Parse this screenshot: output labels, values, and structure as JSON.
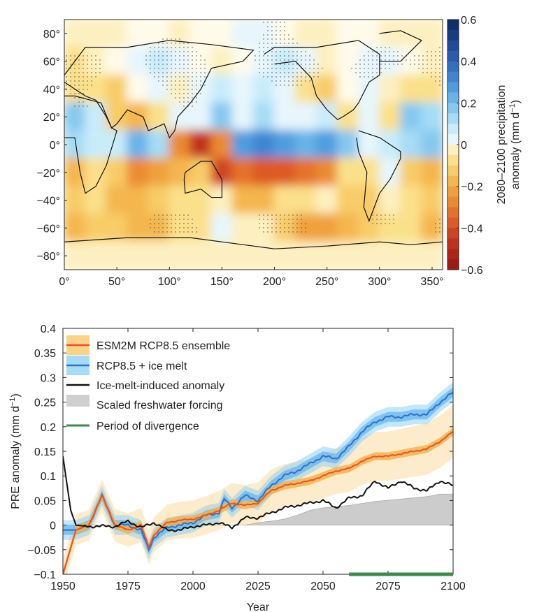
{
  "chart_data": [
    {
      "type": "heatmap",
      "x_ticks": [
        "0°",
        "50°",
        "100°",
        "150°",
        "200°",
        "250°",
        "300°",
        "350°"
      ],
      "x_tick_values": [
        0,
        50,
        100,
        150,
        200,
        250,
        300,
        350
      ],
      "y_ticks": [
        "80°",
        "60°",
        "40°",
        "20°",
        "0°",
        "−20°",
        "−40°",
        "−60°",
        "−80°"
      ],
      "y_tick_values": [
        80,
        60,
        40,
        20,
        0,
        -20,
        -40,
        -60,
        -80
      ],
      "xlim": [
        0,
        360
      ],
      "ylim": [
        -90,
        90
      ],
      "lon_centers": [
        10,
        30,
        50,
        70,
        90,
        110,
        130,
        150,
        170,
        190,
        210,
        230,
        250,
        270,
        290,
        310,
        330,
        350
      ],
      "lat_centers": [
        80,
        60,
        40,
        20,
        0,
        -20,
        -40,
        -60,
        -80
      ],
      "values": [
        [
          -0.05,
          -0.05,
          -0.05,
          0,
          0,
          -0.05,
          0,
          0,
          0.05,
          0.05,
          0,
          -0.05,
          -0.05,
          0,
          0,
          -0.05,
          -0.05,
          -0.05
        ],
        [
          -0.1,
          -0.05,
          0,
          0.05,
          0.1,
          0.05,
          0,
          -0.05,
          0,
          0.05,
          0.1,
          0.05,
          -0.05,
          0,
          0.05,
          0.05,
          0,
          -0.05
        ],
        [
          -0.1,
          -0.1,
          -0.15,
          0,
          0.05,
          -0.05,
          0.05,
          0.1,
          0.05,
          0.1,
          0.05,
          -0.1,
          -0.15,
          0,
          0.05,
          -0.05,
          -0.1,
          -0.1
        ],
        [
          0.2,
          0.1,
          -0.15,
          -0.2,
          -0.1,
          0.05,
          0.05,
          0.2,
          0.05,
          0.15,
          0.05,
          0.05,
          0.1,
          -0.1,
          0.05,
          -0.1,
          0.2,
          0.15
        ],
        [
          0.15,
          0.1,
          0.1,
          0.25,
          0.15,
          -0.3,
          -0.5,
          -0.3,
          0.3,
          0.35,
          0.3,
          0.25,
          0.3,
          0.2,
          0.05,
          0.1,
          0.15,
          0.2
        ],
        [
          -0.2,
          -0.1,
          -0.15,
          -0.3,
          -0.25,
          -0.2,
          -0.15,
          -0.45,
          -0.35,
          -0.4,
          -0.4,
          -0.35,
          -0.3,
          -0.1,
          -0.1,
          0.05,
          -0.15,
          -0.2
        ],
        [
          -0.15,
          -0.1,
          -0.2,
          -0.2,
          -0.15,
          -0.1,
          -0.1,
          -0.05,
          -0.2,
          -0.2,
          -0.1,
          -0.1,
          -0.05,
          -0.15,
          -0.15,
          -0.05,
          -0.1,
          -0.15
        ],
        [
          -0.2,
          -0.15,
          -0.15,
          -0.2,
          -0.2,
          -0.1,
          -0.1,
          0.05,
          -0.05,
          -0.05,
          -0.15,
          -0.25,
          -0.25,
          -0.2,
          -0.15,
          -0.1,
          -0.1,
          -0.2
        ],
        [
          -0.05,
          -0.05,
          -0.05,
          -0.05,
          -0.05,
          -0.05,
          -0.05,
          -0.05,
          -0.05,
          -0.05,
          -0.05,
          -0.05,
          -0.05,
          -0.05,
          -0.05,
          -0.05,
          -0.05,
          -0.05
        ]
      ],
      "colorbar": {
        "label_line1": "2080–2100 precipitation",
        "label_line2": "anomaly (mm d",
        "label_sup": "−1",
        "label_end": ")",
        "ticks": [
          "0.6",
          "0.4",
          "0.2",
          "0",
          "−0.2",
          "−0.4",
          "−0.6"
        ],
        "tick_values": [
          0.6,
          0.4,
          0.2,
          0,
          -0.2,
          -0.4,
          -0.6
        ],
        "range": [
          -0.6,
          0.6
        ],
        "positive_colors": [
          "#fffbea",
          "#e6f6fc",
          "#c8ecfa",
          "#a6dcf5",
          "#86c8ef",
          "#68b3e8",
          "#4f9ddf",
          "#3f85d2",
          "#3470c2",
          "#2a5cae",
          "#214b98",
          "#183c82",
          "#0f2f6c"
        ],
        "negative_colors": [
          "#fffbea",
          "#fdf0c0",
          "#fbe08a",
          "#f8cc68",
          "#f4b64e",
          "#f0a13e",
          "#eb8a32",
          "#e5722a",
          "#dd5a24",
          "#cf4420",
          "#c0321c",
          "#b02418",
          "#a01a14"
        ]
      }
    },
    {
      "type": "line",
      "xlabel": "Year",
      "ylabel": "PRE anomaly (mm d",
      "ylabel_sup": "−1",
      "ylabel_end": ")",
      "xlim": [
        1950,
        2100
      ],
      "ylim": [
        -0.1,
        0.4
      ],
      "x_ticks": [
        "1950",
        "1975",
        "2000",
        "2025",
        "2050",
        "2075",
        "2100"
      ],
      "x_tick_values": [
        1950,
        1975,
        2000,
        2025,
        2050,
        2075,
        2100
      ],
      "y_ticks": [
        "0.4",
        "0.35",
        "0.3",
        "0.25",
        "0.2",
        "0.15",
        "0.1",
        "0.05",
        "0",
        "−0.05",
        "−0.1"
      ],
      "y_tick_values": [
        0.4,
        0.35,
        0.3,
        0.25,
        0.2,
        0.15,
        0.1,
        0.05,
        0,
        -0.05,
        -0.1
      ],
      "legend_position": "top-left",
      "series": [
        {
          "name": "ESM2M RCP8.5 ensemble",
          "color": "#f04e23",
          "band_color": "#f7c96a",
          "x": [
            1950,
            1955,
            1960,
            1965,
            1970,
            1975,
            1980,
            1983,
            1985,
            1990,
            1995,
            2000,
            2005,
            2010,
            2015,
            2020,
            2025,
            2030,
            2035,
            2040,
            2045,
            2050,
            2055,
            2060,
            2065,
            2070,
            2075,
            2080,
            2085,
            2090,
            2095,
            2100
          ],
          "y": [
            -0.1,
            -0.01,
            0.0,
            0.06,
            0.0,
            -0.01,
            0.0,
            -0.045,
            -0.02,
            0.005,
            0.01,
            0.012,
            0.02,
            0.03,
            0.045,
            0.04,
            0.045,
            0.07,
            0.08,
            0.085,
            0.09,
            0.1,
            0.11,
            0.115,
            0.13,
            0.14,
            0.14,
            0.145,
            0.15,
            0.155,
            0.17,
            0.19
          ],
          "band_inner": 0.008,
          "band_outer": 0.03
        },
        {
          "name": "RCP8.5 + ice melt",
          "color": "#2f6fcc",
          "band_color": "#8fd2f5",
          "x": [
            1950,
            1955,
            1960,
            1965,
            1970,
            1975,
            1980,
            1983,
            1985,
            1990,
            1995,
            2000,
            2005,
            2010,
            2012,
            2015,
            2020,
            2025,
            2030,
            2035,
            2040,
            2045,
            2050,
            2055,
            2060,
            2065,
            2070,
            2075,
            2080,
            2085,
            2090,
            2095,
            2100
          ],
          "y": [
            -0.01,
            -0.01,
            0.0,
            0.06,
            0.0,
            0.0,
            -0.01,
            -0.05,
            -0.025,
            -0.005,
            0.0,
            0.005,
            0.02,
            0.025,
            0.053,
            0.035,
            0.06,
            0.05,
            0.08,
            0.1,
            0.11,
            0.125,
            0.14,
            0.135,
            0.16,
            0.19,
            0.21,
            0.22,
            0.22,
            0.225,
            0.225,
            0.25,
            0.27
          ],
          "band_inner": 0.01,
          "band_outer": 0.02
        },
        {
          "name": "Ice-melt-induced anomaly",
          "color": "#111111",
          "x": [
            1950,
            1953,
            1955,
            1960,
            1965,
            1970,
            1975,
            1980,
            1985,
            1990,
            1995,
            2000,
            2005,
            2010,
            2015,
            2020,
            2025,
            2030,
            2035,
            2040,
            2045,
            2050,
            2055,
            2060,
            2065,
            2070,
            2075,
            2080,
            2085,
            2090,
            2095,
            2100
          ],
          "y": [
            0.14,
            0.03,
            0.0,
            -0.003,
            -0.002,
            -0.003,
            0.008,
            -0.005,
            0.005,
            -0.01,
            -0.01,
            -0.003,
            0.0,
            0.005,
            -0.005,
            0.015,
            0.015,
            0.025,
            0.035,
            0.04,
            0.045,
            0.05,
            0.035,
            0.055,
            0.06,
            0.09,
            0.075,
            0.09,
            0.075,
            0.07,
            0.09,
            0.08
          ]
        },
        {
          "name": "Scaled freshwater forcing",
          "color": "#cccccc",
          "x": [
            1950,
            2020,
            2025,
            2030,
            2035,
            2040,
            2045,
            2050,
            2060,
            2070,
            2080,
            2090,
            2095,
            2100
          ],
          "y": [
            0,
            0,
            0.005,
            0.008,
            0.012,
            0.02,
            0.03,
            0.035,
            0.04,
            0.048,
            0.053,
            0.058,
            0.063,
            0.063
          ]
        },
        {
          "name": "Period of divergence",
          "color": "#3a8a4a",
          "x": [
            2060,
            2100
          ]
        }
      ]
    }
  ]
}
